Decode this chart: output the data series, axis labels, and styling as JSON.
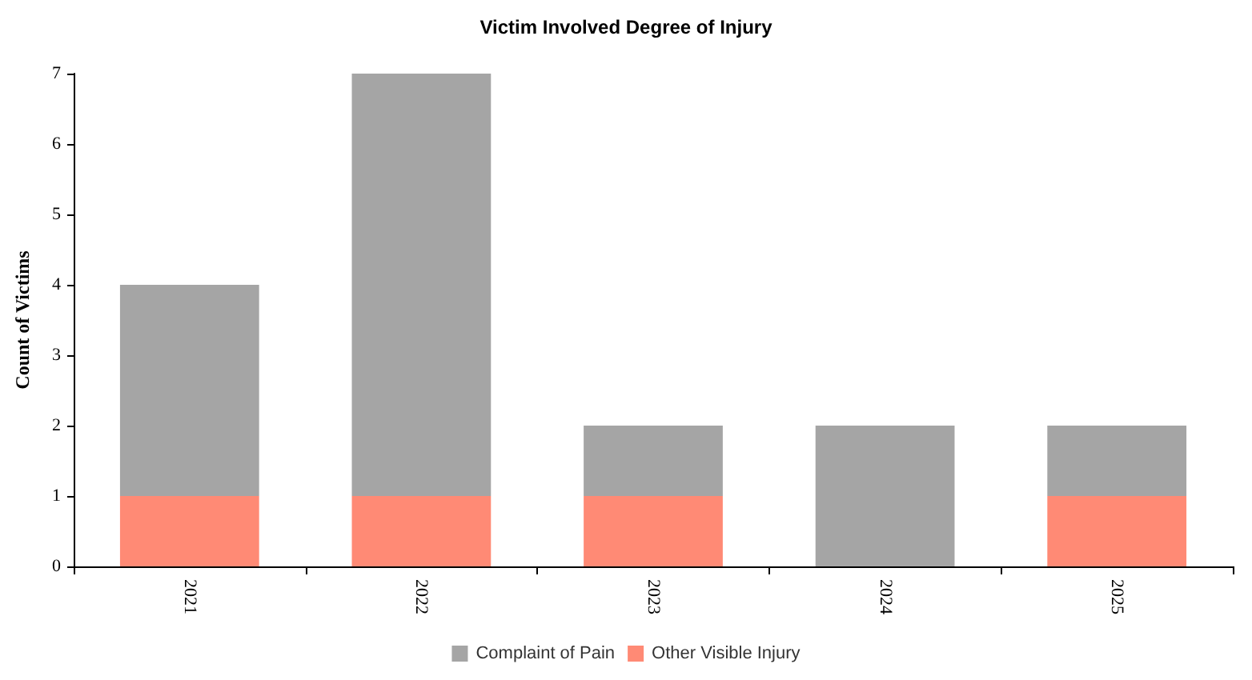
{
  "chart_data": {
    "type": "bar",
    "title": "Victim Involved Degree of Injury",
    "ylabel": "Count of Victims",
    "categories": [
      "2021",
      "2022",
      "2023",
      "2024",
      "2025"
    ],
    "stacked": true,
    "series": [
      {
        "name": "Other Visible Injury",
        "color": "#ff8a75",
        "values": [
          1,
          1,
          1,
          0,
          1
        ]
      },
      {
        "name": "Complaint of Pain",
        "color": "#a5a5a5",
        "values": [
          3,
          6,
          1,
          2,
          1
        ]
      }
    ],
    "ylim": [
      0,
      7
    ],
    "yticks": [
      0,
      1,
      2,
      3,
      4,
      5,
      6,
      7
    ],
    "grid": false,
    "legend": "bottom"
  }
}
